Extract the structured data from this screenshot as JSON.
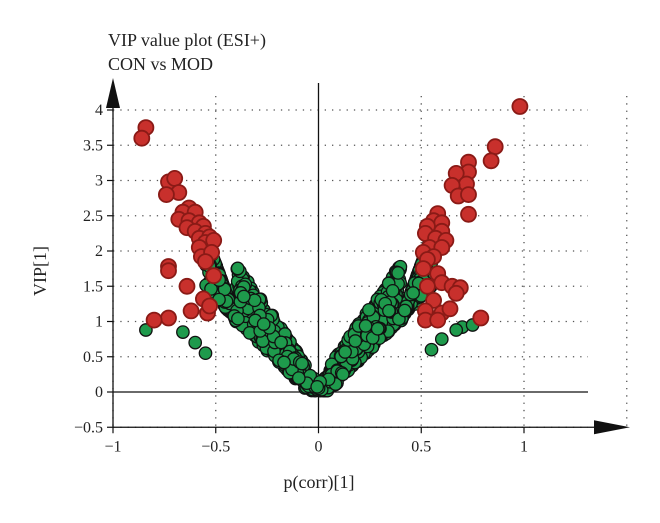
{
  "chart_data": {
    "type": "scatter",
    "title": "VIP value plot (ESI+)",
    "subtitle": "CON vs MOD",
    "xlabel": "p(corr)[1]",
    "ylabel": "VIP[1]",
    "xlim": [
      -1,
      1.5
    ],
    "ylim": [
      -0.5,
      4.3
    ],
    "x_ticks": [
      "−1",
      "−0.5",
      "0",
      "0.5",
      "1"
    ],
    "y_ticks": [
      "−0.5",
      "0",
      "0.5",
      "1",
      "1.5",
      "2",
      "2.5",
      "3",
      "3.5",
      "4"
    ],
    "grid": "dotted",
    "colors": {
      "significant": "#c8302c",
      "non_significant": "#1e9a4c",
      "outline": "#111111"
    },
    "series": [
      {
        "significance": "VIP > 1",
        "color": "#c8302c",
        "points": [
          [
            -0.84,
            3.75
          ],
          [
            -0.86,
            3.6
          ],
          [
            -0.73,
            2.98
          ],
          [
            -0.7,
            3.03
          ],
          [
            -0.68,
            2.83
          ],
          [
            -0.74,
            2.8
          ],
          [
            -0.63,
            2.61
          ],
          [
            -0.66,
            2.55
          ],
          [
            -0.68,
            2.45
          ],
          [
            -0.6,
            2.55
          ],
          [
            -0.63,
            2.43
          ],
          [
            -0.58,
            2.4
          ],
          [
            -0.64,
            2.33
          ],
          [
            -0.56,
            2.35
          ],
          [
            -0.6,
            2.28
          ],
          [
            -0.55,
            2.25
          ],
          [
            -0.58,
            2.18
          ],
          [
            -0.53,
            2.2
          ],
          [
            -0.55,
            2.12
          ],
          [
            -0.51,
            2.15
          ],
          [
            -0.58,
            2.05
          ],
          [
            -0.57,
            1.92
          ],
          [
            -0.52,
            1.98
          ],
          [
            -0.55,
            1.85
          ],
          [
            -0.73,
            1.78
          ],
          [
            -0.73,
            1.72
          ],
          [
            -0.51,
            1.65
          ],
          [
            -0.64,
            1.5
          ],
          [
            -0.56,
            1.32
          ],
          [
            -0.62,
            1.15
          ],
          [
            -0.54,
            1.12
          ],
          [
            -0.53,
            1.22
          ],
          [
            -0.73,
            1.05
          ],
          [
            -0.8,
            1.02
          ],
          [
            0.98,
            4.05
          ],
          [
            0.86,
            3.48
          ],
          [
            0.84,
            3.28
          ],
          [
            0.73,
            3.26
          ],
          [
            0.73,
            3.12
          ],
          [
            0.67,
            3.1
          ],
          [
            0.72,
            2.95
          ],
          [
            0.65,
            2.93
          ],
          [
            0.68,
            2.78
          ],
          [
            0.73,
            2.8
          ],
          [
            0.58,
            2.53
          ],
          [
            0.73,
            2.52
          ],
          [
            0.56,
            2.43
          ],
          [
            0.6,
            2.4
          ],
          [
            0.53,
            2.35
          ],
          [
            0.6,
            2.28
          ],
          [
            0.52,
            2.25
          ],
          [
            0.57,
            2.18
          ],
          [
            0.62,
            2.15
          ],
          [
            0.54,
            2.05
          ],
          [
            0.6,
            2.05
          ],
          [
            0.51,
            1.98
          ],
          [
            0.56,
            1.92
          ],
          [
            0.53,
            1.88
          ],
          [
            0.51,
            1.75
          ],
          [
            0.58,
            1.68
          ],
          [
            0.6,
            1.55
          ],
          [
            0.53,
            1.5
          ],
          [
            0.65,
            1.5
          ],
          [
            0.69,
            1.48
          ],
          [
            0.67,
            1.4
          ],
          [
            0.56,
            1.3
          ],
          [
            0.52,
            1.15
          ],
          [
            0.6,
            1.12
          ],
          [
            0.64,
            1.18
          ],
          [
            0.52,
            1.02
          ],
          [
            0.58,
            1.02
          ],
          [
            0.79,
            1.05
          ]
        ]
      }
    ]
  }
}
